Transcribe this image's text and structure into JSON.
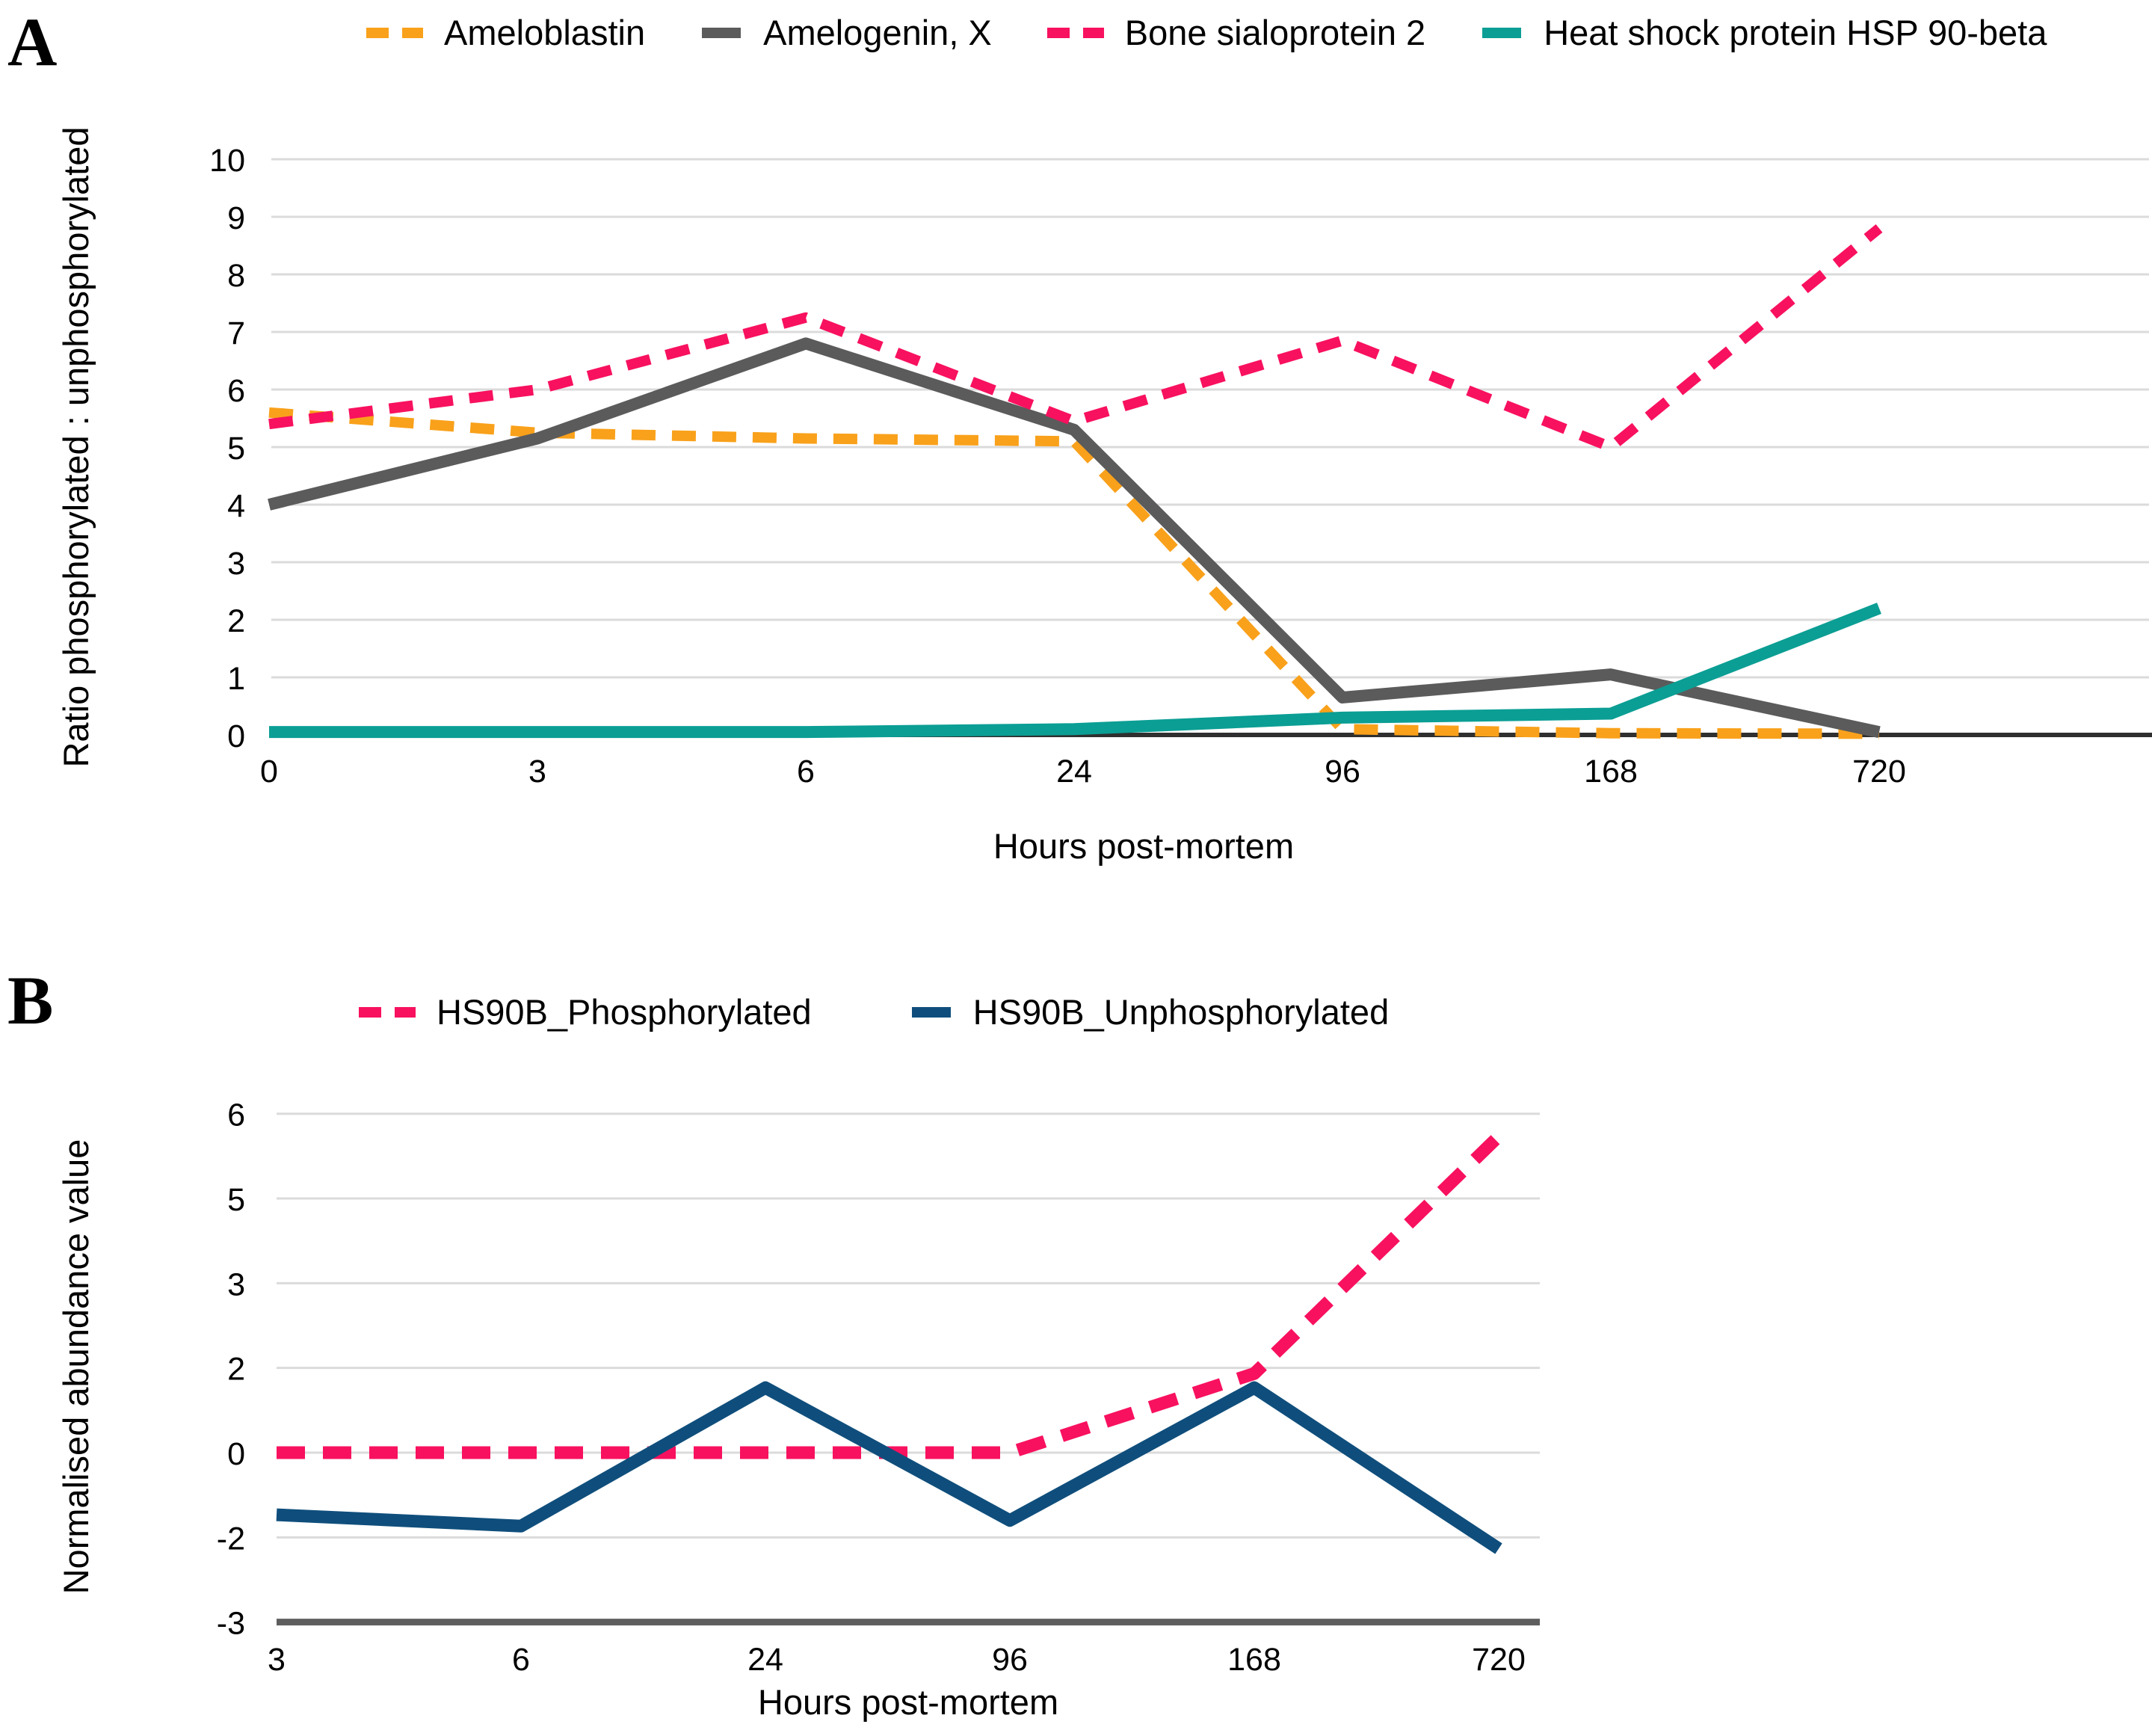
{
  "figure": {
    "panels": [
      {
        "label": "A"
      },
      {
        "label": "B"
      }
    ]
  },
  "chart_data": [
    {
      "type": "line",
      "panel": "A",
      "title": "",
      "xlabel": "Hours post-mortem",
      "ylabel": "Ratio phosphorylated : unphosphorylated",
      "x_tick_labels": [
        "0",
        "3",
        "6",
        "24",
        "96",
        "168",
        "720"
      ],
      "x_values": [
        0,
        3,
        6,
        24,
        96,
        168,
        720
      ],
      "y_tick_labels": [
        "0",
        "1",
        "2",
        "3",
        "4",
        "5",
        "6",
        "7",
        "8",
        "9",
        "10"
      ],
      "y_tick_values": [
        0,
        1,
        2,
        3,
        4,
        5,
        6,
        7,
        8,
        9,
        10
      ],
      "ylim": [
        0,
        10
      ],
      "grid": true,
      "legend_position": "top",
      "gridline_color": "#DBDBDB",
      "series": [
        {
          "name": "Ameloblastin",
          "color": "#F9A11B",
          "style": "dashed",
          "values": [
            5.6,
            5.25,
            5.15,
            5.1,
            0.1,
            0.03,
            0.02
          ]
        },
        {
          "name": "Amelogenin, X",
          "color": "#5B5B5B",
          "style": "solid",
          "values": [
            4.0,
            5.15,
            6.8,
            5.3,
            0.65,
            1.05,
            0.05
          ]
        },
        {
          "name": "Bone sialoprotein 2",
          "color": "#F8115E",
          "style": "dashed",
          "values": [
            5.4,
            6.0,
            7.25,
            5.45,
            6.85,
            5.0,
            8.8
          ]
        },
        {
          "name": "Heat shock protein HSP 90-beta",
          "color": "#0B9E94",
          "style": "solid",
          "values": [
            0.05,
            0.05,
            0.05,
            0.1,
            0.3,
            0.37,
            2.2
          ]
        }
      ]
    },
    {
      "type": "line",
      "panel": "B",
      "title": "",
      "xlabel": "Hours post-mortem",
      "ylabel": "Normalised abundance value",
      "x_tick_labels": [
        "3",
        "6",
        "24",
        "96",
        "168",
        "720"
      ],
      "x_values": [
        3,
        6,
        24,
        96,
        168,
        720
      ],
      "y_tick_labels": [
        "6",
        "5",
        "3",
        "2",
        "0",
        "-2",
        "-3"
      ],
      "y_tick_values": [
        6,
        4.5,
        3,
        1.5,
        0,
        -1.5,
        -3
      ],
      "ylim": [
        -3,
        6
      ],
      "grid": true,
      "legend_position": "top",
      "gridline_color": "#DBDBDB",
      "series": [
        {
          "name": "HS90B_Phosphorylated",
          "color": "#F8115E",
          "style": "dashed",
          "values": [
            0,
            0,
            0,
            0,
            1.4,
            5.6
          ]
        },
        {
          "name": "HS90B_Unphosphorylated",
          "color": "#0F4E7C",
          "style": "solid",
          "values": [
            -1.1,
            -1.3,
            1.15,
            -1.2,
            1.15,
            -1.7
          ]
        }
      ]
    }
  ]
}
